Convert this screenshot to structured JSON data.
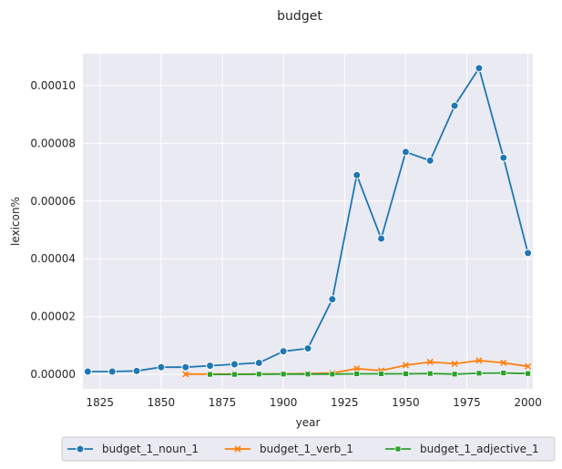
{
  "chart_data": {
    "type": "line",
    "title": "budget",
    "xlabel": "year",
    "ylabel": "lexicon%",
    "xlim": [
      1818,
      2002
    ],
    "ylim": [
      -5e-06,
      0.000111
    ],
    "xticks": [
      1825,
      1850,
      1875,
      1900,
      1925,
      1950,
      1975,
      2000
    ],
    "xtick_labels": [
      "1825",
      "1850",
      "1875",
      "1900",
      "1925",
      "1950",
      "1975",
      "2000"
    ],
    "yticks": [
      0,
      2e-05,
      4e-05,
      6e-05,
      8e-05,
      0.0001
    ],
    "ytick_labels": [
      "0.00000",
      "0.00002",
      "0.00004",
      "0.00006",
      "0.00008",
      "0.00010"
    ],
    "grid": true,
    "legend_position": "bottom",
    "series": [
      {
        "name": "budget_1_noun_1",
        "color": "#1f77b4",
        "marker": "circle",
        "x": [
          1820,
          1830,
          1840,
          1850,
          1860,
          1870,
          1880,
          1890,
          1900,
          1910,
          1920,
          1930,
          1940,
          1950,
          1960,
          1970,
          1980,
          1990,
          2000
        ],
        "y": [
          1e-06,
          1e-06,
          1.2e-06,
          2.5e-06,
          2.5e-06,
          3e-06,
          3.5e-06,
          4e-06,
          8e-06,
          9e-06,
          2.6e-05,
          6.9e-05,
          4.7e-05,
          7.7e-05,
          7.4e-05,
          9.3e-05,
          0.000106,
          7.5e-05,
          4.2e-05
        ]
      },
      {
        "name": "budget_1_verb_1",
        "color": "#ff7f0e",
        "marker": "x",
        "x": [
          1860,
          1870,
          1880,
          1890,
          1900,
          1910,
          1920,
          1930,
          1940,
          1950,
          1960,
          1970,
          1980,
          1990,
          2000
        ],
        "y": [
          1e-07,
          1e-07,
          1e-07,
          1e-07,
          2e-07,
          3e-07,
          5e-07,
          2e-06,
          1.3e-06,
          3.2e-06,
          4.3e-06,
          3.7e-06,
          4.8e-06,
          4e-06,
          2.8e-06
        ]
      },
      {
        "name": "budget_1_adjective_1",
        "color": "#2ca02c",
        "marker": "square",
        "x": [
          1870,
          1880,
          1890,
          1900,
          1910,
          1920,
          1930,
          1940,
          1950,
          1960,
          1970,
          1980,
          1990,
          2000
        ],
        "y": [
          0,
          0,
          1e-07,
          1e-07,
          1e-07,
          1e-07,
          2e-07,
          2e-07,
          2e-07,
          3e-07,
          1e-07,
          4e-07,
          5e-07,
          3e-07
        ]
      }
    ]
  }
}
